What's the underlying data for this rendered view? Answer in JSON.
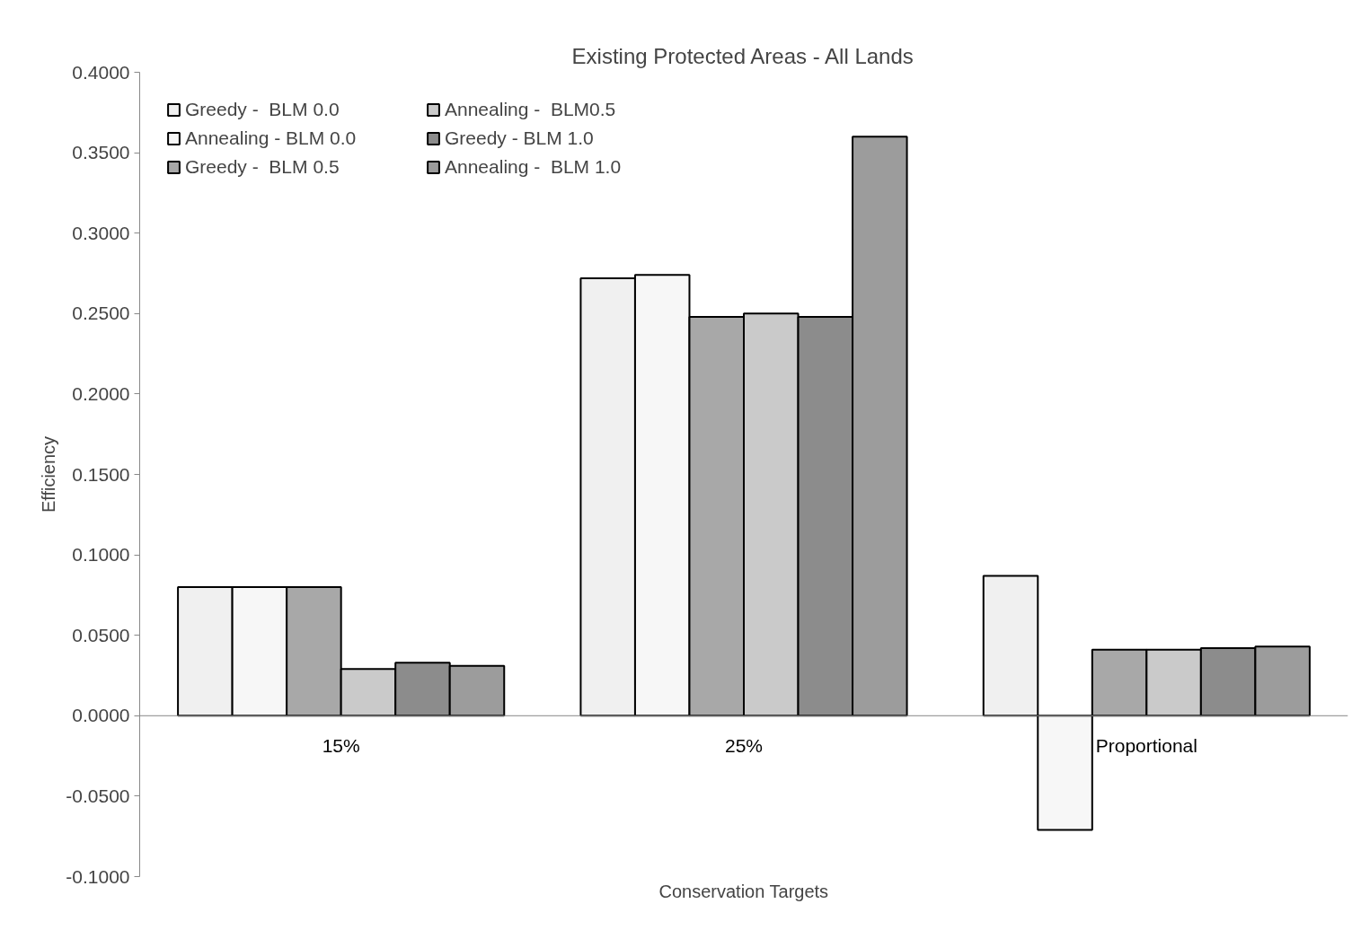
{
  "chart_data": {
    "type": "bar",
    "title": "Existing Protected Areas - All Lands",
    "xlabel": "Conservation Targets",
    "ylabel": "Efficiency",
    "categories": [
      "15%",
      "25%",
      "Proportional"
    ],
    "series": [
      {
        "name": "Greedy -  BLM 0.0",
        "color": "#f0f0f0",
        "values": [
          0.08,
          0.272,
          0.087
        ]
      },
      {
        "name": "Annealing - BLM 0.0",
        "color": "#f7f7f7",
        "values": [
          0.08,
          0.274,
          -0.071
        ]
      },
      {
        "name": "Greedy -  BLM 0.5",
        "color": "#a8a8a8",
        "values": [
          0.08,
          0.248,
          0.041
        ]
      },
      {
        "name": "Annealing -  BLM0.5",
        "color": "#cacaca",
        "values": [
          0.029,
          0.25,
          0.041
        ]
      },
      {
        "name": "Greedy - BLM 1.0",
        "color": "#8c8c8c",
        "values": [
          0.033,
          0.248,
          0.042
        ]
      },
      {
        "name": "Annealing -  BLM 1.0",
        "color": "#9c9c9c",
        "values": [
          0.031,
          0.36,
          0.043
        ]
      }
    ],
    "ylim": [
      -0.1,
      0.4
    ],
    "yticks": [
      {
        "value": -0.1,
        "label": "-0.1000"
      },
      {
        "value": -0.05,
        "label": "-0.0500"
      },
      {
        "value": 0,
        "label": "0.0000"
      },
      {
        "value": 0.05,
        "label": "0.0500"
      },
      {
        "value": 0.1,
        "label": "0.1000"
      },
      {
        "value": 0.15,
        "label": "0.1500"
      },
      {
        "value": 0.2,
        "label": "0.2000"
      },
      {
        "value": 0.25,
        "label": "0.2500"
      },
      {
        "value": 0.3,
        "label": "0.3000"
      },
      {
        "value": 0.35,
        "label": "0.3500"
      },
      {
        "value": 0.4,
        "label": "0.4000"
      }
    ],
    "grid": false,
    "legend": "top left"
  }
}
